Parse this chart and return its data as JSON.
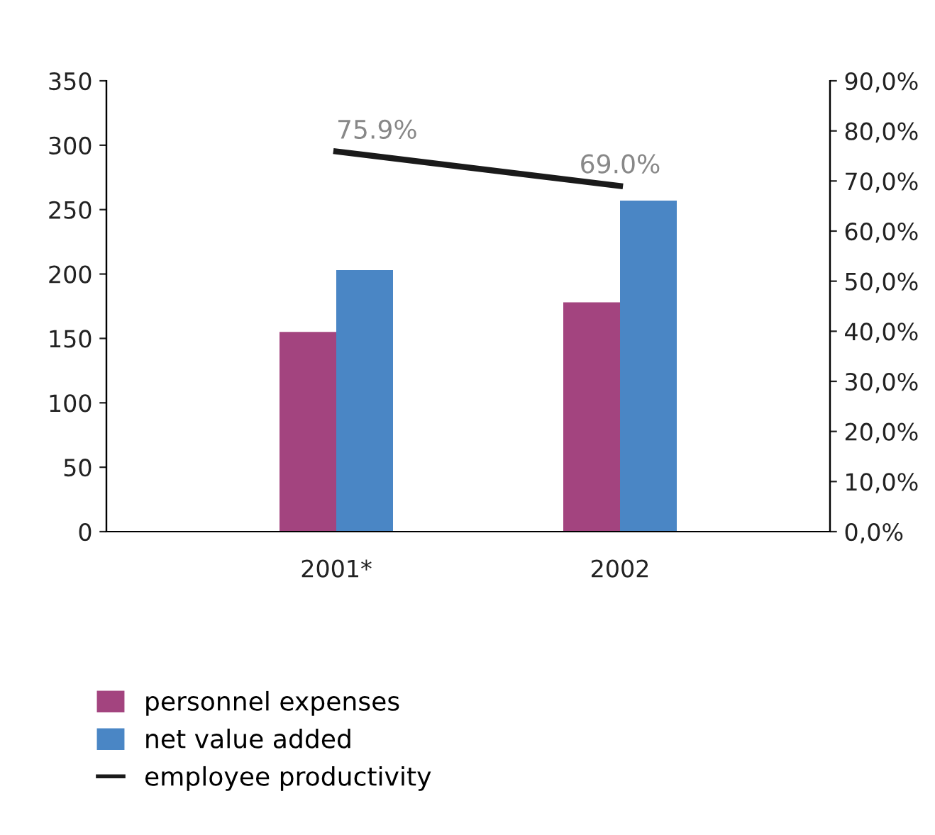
{
  "chart_data": {
    "type": "bar",
    "categories": [
      "2001*",
      "2002"
    ],
    "series": [
      {
        "name": "personnel expenses",
        "color": "#a3447f",
        "values": [
          155,
          178
        ]
      },
      {
        "name": "net value added",
        "color": "#4a86c5",
        "values": [
          203,
          257
        ]
      },
      {
        "name": "employee productivity",
        "type": "line",
        "axis": "y2",
        "color": "#1a1a1a",
        "values": [
          75.9,
          69.0
        ],
        "value_labels": [
          "75.9%",
          "69.0%"
        ]
      }
    ],
    "ylim": [
      0,
      350
    ],
    "yticks": [
      0,
      50,
      100,
      150,
      200,
      250,
      300,
      350
    ],
    "y2lim": [
      0,
      90
    ],
    "y2ticks": [
      {
        "value": 0,
        "label": "0,0%"
      },
      {
        "value": 10,
        "label": "10,0%"
      },
      {
        "value": 20,
        "label": "20,0%"
      },
      {
        "value": 30,
        "label": "30,0%"
      },
      {
        "value": 40,
        "label": "40,0%"
      },
      {
        "value": 50,
        "label": "50,0%"
      },
      {
        "value": 60,
        "label": "60,0%"
      },
      {
        "value": 70,
        "label": "70,0%"
      },
      {
        "value": 80,
        "label": "80,0%"
      },
      {
        "value": 90,
        "label": "90,0%"
      }
    ],
    "grid": false,
    "legend": "bottom",
    "marker": "none",
    "line_style": "solid"
  }
}
